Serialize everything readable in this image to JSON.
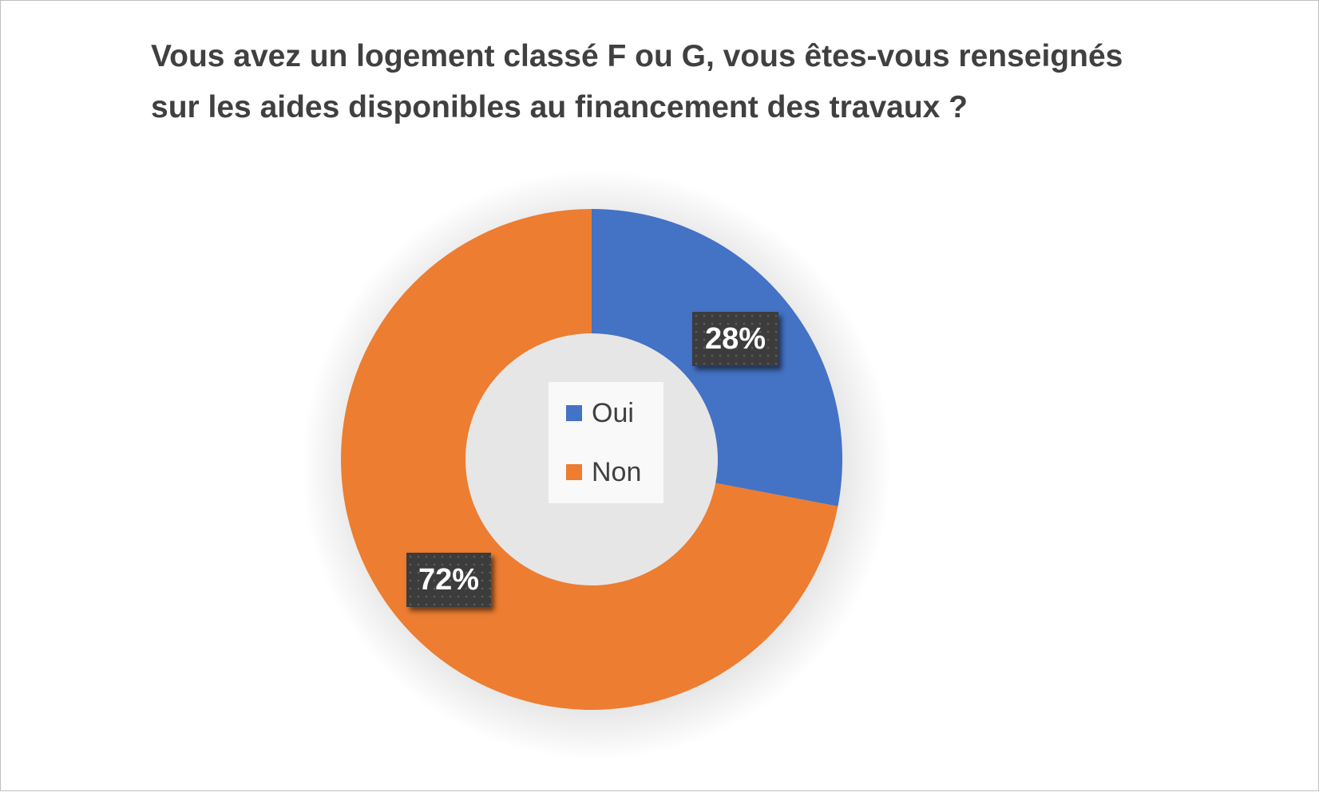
{
  "title_lines": [
    "Vous avez un logement classé F ou G, vous êtes-vous renseignés",
    "sur les aides disponibles au financement des travaux ?"
  ],
  "chart_data": {
    "type": "pie",
    "subtype": "doughnut",
    "title": "Vous avez un logement classé F ou G, vous êtes-vous renseignés sur les aides disponibles au financement des travaux ?",
    "categories": [
      "Oui",
      "Non"
    ],
    "values": [
      28,
      72
    ],
    "labels": [
      "28%",
      "72%"
    ],
    "colors": [
      "#4472c4",
      "#ed7d31"
    ],
    "legend": "center"
  }
}
